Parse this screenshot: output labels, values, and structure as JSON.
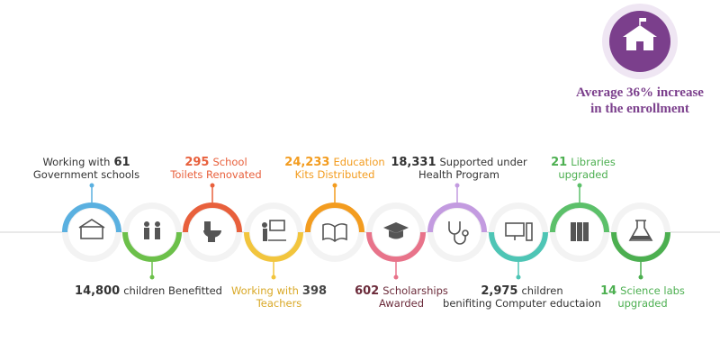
{
  "highlight": {
    "lines": [
      "Average 36% increase",
      "in the enrollment"
    ],
    "color": "#7b3f8c"
  },
  "items": [
    {
      "color": "#5ab0e0",
      "lines": [
        [
          {
            "text": "Working with",
            "color": "#333333"
          },
          {
            "text": "61",
            "color": "#333333",
            "bold": true
          }
        ],
        [
          {
            "text": "Government schools",
            "color": "#333333"
          }
        ]
      ]
    },
    {
      "color": "#6cc04a",
      "lines": [
        [
          {
            "text": "14,800",
            "color": "#333333",
            "bold": true
          },
          {
            "text": "children Benefitted",
            "color": "#333333"
          }
        ]
      ]
    },
    {
      "color": "#e8603c",
      "lines": [
        [
          {
            "text": "295",
            "color": "#e8603c",
            "bold": true
          },
          {
            "text": "School",
            "color": "#e8603c"
          }
        ],
        [
          {
            "text": "Toilets Renovated",
            "color": "#e8603c"
          }
        ]
      ]
    },
    {
      "color": "#f2c53d",
      "lines": [
        [
          {
            "text": "Working with",
            "color": "#d9a826"
          },
          {
            "text": "398",
            "color": "#444444",
            "bold": true
          }
        ],
        [
          {
            "text": "Teachers",
            "color": "#d9a826"
          }
        ]
      ]
    },
    {
      "color": "#f39c1f",
      "lines": [
        [
          {
            "text": "24,233",
            "color": "#f39c1f",
            "bold": true
          },
          {
            "text": "Education",
            "color": "#f39c1f"
          }
        ],
        [
          {
            "text": "Kits Distributed",
            "color": "#f39c1f"
          }
        ]
      ]
    },
    {
      "color": "#e8738a",
      "lines": [
        [
          {
            "text": "602",
            "color": "#6b2b3a",
            "bold": true
          },
          {
            "text": "Scholarships",
            "color": "#6b2b3a"
          }
        ],
        [
          {
            "text": "Awarded",
            "color": "#6b2b3a"
          }
        ]
      ]
    },
    {
      "color": "#c39be0",
      "lines": [
        [
          {
            "text": "18,331",
            "color": "#333333",
            "bold": true
          },
          {
            "text": "Supported under",
            "color": "#333333"
          }
        ],
        [
          {
            "text": "Health Program",
            "color": "#333333"
          }
        ]
      ]
    },
    {
      "color": "#4ec5b5",
      "lines": [
        [
          {
            "text": "2,975",
            "color": "#333333",
            "bold": true
          },
          {
            "text": "children",
            "color": "#333333"
          }
        ],
        [
          {
            "text": "benifiting Computer eductaion",
            "color": "#333333"
          }
        ]
      ]
    },
    {
      "color": "#5cc06a",
      "lines": [
        [
          {
            "text": "21",
            "color": "#4caf50",
            "bold": true
          },
          {
            "text": "Libraries",
            "color": "#4caf50"
          }
        ],
        [
          {
            "text": "upgraded",
            "color": "#4caf50"
          }
        ]
      ]
    },
    {
      "color": "#4caf50",
      "lines": [
        [
          {
            "text": "14",
            "color": "#4caf50",
            "bold": true
          },
          {
            "text": "Science labs",
            "color": "#4caf50"
          }
        ],
        [
          {
            "text": "upgraded",
            "color": "#4caf50"
          }
        ]
      ]
    }
  ]
}
